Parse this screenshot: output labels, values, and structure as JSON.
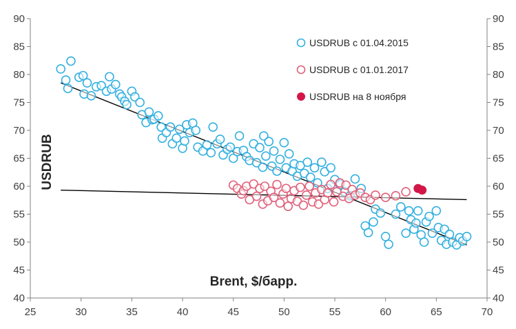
{
  "chart_data": {
    "type": "scatter",
    "xlabel": "Brent, $/барр.",
    "ylabel": "USDRUB",
    "xlim": [
      25,
      70
    ],
    "ylim": [
      40,
      90
    ],
    "xticks": [
      25,
      30,
      35,
      40,
      45,
      50,
      55,
      60,
      65,
      70
    ],
    "yticks": [
      40,
      45,
      50,
      55,
      60,
      65,
      70,
      75,
      80,
      85,
      90
    ],
    "secondary_y_axis": true,
    "grid": false,
    "legend_position": "top-right",
    "colors": {
      "blue": "#33b0e0",
      "pink": "#e0607a",
      "red": "#d21748",
      "trend": "#000000"
    },
    "series": [
      {
        "name": "USDRUB с 01.04.2015",
        "color": "#33b0e0",
        "style": "hollow",
        "points": [
          [
            28,
            81
          ],
          [
            29,
            82.4
          ],
          [
            28.5,
            79
          ],
          [
            28.7,
            77.5
          ],
          [
            29.8,
            79.5
          ],
          [
            30.2,
            79.8
          ],
          [
            30.6,
            78.5
          ],
          [
            30.3,
            76.5
          ],
          [
            31,
            76.2
          ],
          [
            31.5,
            77.8
          ],
          [
            32,
            78
          ],
          [
            32.5,
            77
          ],
          [
            32.8,
            79.6
          ],
          [
            33,
            77.4
          ],
          [
            33.4,
            78.2
          ],
          [
            33.8,
            76.5
          ],
          [
            34,
            76
          ],
          [
            34.3,
            75.2
          ],
          [
            34.5,
            74.6
          ],
          [
            35,
            77
          ],
          [
            35.3,
            76
          ],
          [
            35.8,
            75
          ],
          [
            36,
            72.8
          ],
          [
            36.4,
            71.4
          ],
          [
            36.7,
            73.3
          ],
          [
            37,
            71.9
          ],
          [
            37.2,
            72
          ],
          [
            37.6,
            72.6
          ],
          [
            37.9,
            70.6
          ],
          [
            38,
            68.6
          ],
          [
            38.4,
            69.6
          ],
          [
            38.8,
            70.6
          ],
          [
            39,
            67.6
          ],
          [
            39.4,
            68.6
          ],
          [
            39.7,
            70.2
          ],
          [
            40,
            66.8
          ],
          [
            40.2,
            68.1
          ],
          [
            40.4,
            71
          ],
          [
            40.7,
            69.6
          ],
          [
            41,
            71.3
          ],
          [
            41.3,
            70
          ],
          [
            41.5,
            67
          ],
          [
            42,
            66.3
          ],
          [
            42.4,
            67.4
          ],
          [
            42.8,
            66
          ],
          [
            43,
            70.6
          ],
          [
            43.4,
            67.6
          ],
          [
            43.7,
            68.4
          ],
          [
            44,
            65.6
          ],
          [
            44.4,
            66.6
          ],
          [
            44.7,
            67
          ],
          [
            45,
            65
          ],
          [
            45.4,
            66.2
          ],
          [
            45.6,
            69
          ],
          [
            46,
            66.4
          ],
          [
            46.3,
            65.3
          ],
          [
            46.6,
            64.6
          ],
          [
            47,
            67.6
          ],
          [
            47.3,
            64.2
          ],
          [
            47.6,
            66.9
          ],
          [
            47.9,
            63.4
          ],
          [
            48,
            69
          ],
          [
            48.2,
            65.4
          ],
          [
            48.5,
            68
          ],
          [
            48.8,
            63.6
          ],
          [
            49,
            66.3
          ],
          [
            49.3,
            62.7
          ],
          [
            49.6,
            64.8
          ],
          [
            50,
            67.8
          ],
          [
            50.2,
            63.3
          ],
          [
            50.5,
            65.8
          ],
          [
            50.8,
            62.7
          ],
          [
            51,
            64
          ],
          [
            51.3,
            61.8
          ],
          [
            51.6,
            63.7
          ],
          [
            52,
            62.3
          ],
          [
            52.3,
            64.3
          ],
          [
            52.6,
            61.6
          ],
          [
            53,
            63.3
          ],
          [
            53.3,
            60.6
          ],
          [
            53.7,
            64.3
          ],
          [
            54,
            62.6
          ],
          [
            54.3,
            59.6
          ],
          [
            54.6,
            63.3
          ],
          [
            55,
            61.2
          ],
          [
            55.5,
            60.3
          ],
          [
            56,
            59
          ],
          [
            56.5,
            58.3
          ],
          [
            57,
            61.3
          ],
          [
            57.6,
            59.6
          ],
          [
            58,
            52.9
          ],
          [
            58.3,
            51.7
          ],
          [
            58.8,
            53.6
          ],
          [
            59,
            55.9
          ],
          [
            59.5,
            55.2
          ],
          [
            60,
            51
          ],
          [
            60.3,
            49.6
          ],
          [
            61,
            55
          ],
          [
            61.5,
            56.3
          ],
          [
            62,
            51.6
          ],
          [
            62.3,
            55.6
          ],
          [
            62.5,
            54
          ],
          [
            62.8,
            52.3
          ],
          [
            63,
            53.4
          ],
          [
            63.2,
            55.6
          ],
          [
            63.5,
            51.3
          ],
          [
            63.8,
            50
          ],
          [
            64,
            53.6
          ],
          [
            64.3,
            54.6
          ],
          [
            64.6,
            51.6
          ],
          [
            65,
            55.6
          ],
          [
            65.2,
            52.6
          ],
          [
            65.5,
            50.3
          ],
          [
            65.8,
            52.3
          ],
          [
            66,
            49.6
          ],
          [
            66.3,
            51.4
          ],
          [
            66.6,
            50
          ],
          [
            67,
            49.5
          ],
          [
            67.3,
            50.8
          ],
          [
            67.6,
            50.2
          ],
          [
            68,
            51
          ]
        ]
      },
      {
        "name": "USDRUB с 01.01.2017",
        "color": "#e0607a",
        "style": "hollow",
        "points": [
          [
            45,
            60.2
          ],
          [
            45.4,
            59.6
          ],
          [
            45.8,
            58.6
          ],
          [
            46,
            59.2
          ],
          [
            46.3,
            60
          ],
          [
            46.6,
            57.6
          ],
          [
            47,
            60.4
          ],
          [
            47.3,
            58.2
          ],
          [
            47.6,
            59.6
          ],
          [
            47.9,
            56.8
          ],
          [
            48.1,
            60
          ],
          [
            48.4,
            57.4
          ],
          [
            48.7,
            59.1
          ],
          [
            49,
            58
          ],
          [
            49.3,
            60.3
          ],
          [
            49.6,
            57
          ],
          [
            49.9,
            58.6
          ],
          [
            50.2,
            59.6
          ],
          [
            50.4,
            56.4
          ],
          [
            50.7,
            57.8
          ],
          [
            51,
            59.2
          ],
          [
            51.3,
            57.3
          ],
          [
            51.6,
            59.8
          ],
          [
            51.9,
            56.6
          ],
          [
            52.2,
            58.4
          ],
          [
            52.5,
            60
          ],
          [
            52.8,
            57.2
          ],
          [
            53.1,
            58.8
          ],
          [
            53.4,
            56.8
          ],
          [
            53.7,
            59.4
          ],
          [
            54,
            57.6
          ],
          [
            54.3,
            58.8
          ],
          [
            54.6,
            60.3
          ],
          [
            54.9,
            57.2
          ],
          [
            55.2,
            59
          ],
          [
            55.5,
            60.6
          ],
          [
            55.8,
            58.2
          ],
          [
            56.1,
            60.2
          ],
          [
            56.4,
            57.8
          ],
          [
            56.7,
            59.4
          ],
          [
            57,
            58.4
          ],
          [
            57.5,
            58.8
          ],
          [
            58,
            58
          ],
          [
            58.5,
            57.6
          ],
          [
            59,
            58.4
          ],
          [
            60,
            58
          ],
          [
            61,
            58.3
          ],
          [
            62,
            59
          ]
        ]
      },
      {
        "name": "USDRUB на 8 ноября",
        "color": "#d21748",
        "style": "filled",
        "points": [
          [
            63.2,
            59.6
          ],
          [
            63.6,
            59.3
          ]
        ]
      }
    ],
    "trendlines": [
      {
        "series": "USDRUB с 01.04.2015",
        "from": [
          28,
          78.5
        ],
        "to": [
          68,
          49.5
        ]
      },
      {
        "series": "USDRUB с 01.01.2017",
        "from": [
          28,
          59.3
        ],
        "to": [
          68,
          57.6
        ]
      }
    ]
  }
}
